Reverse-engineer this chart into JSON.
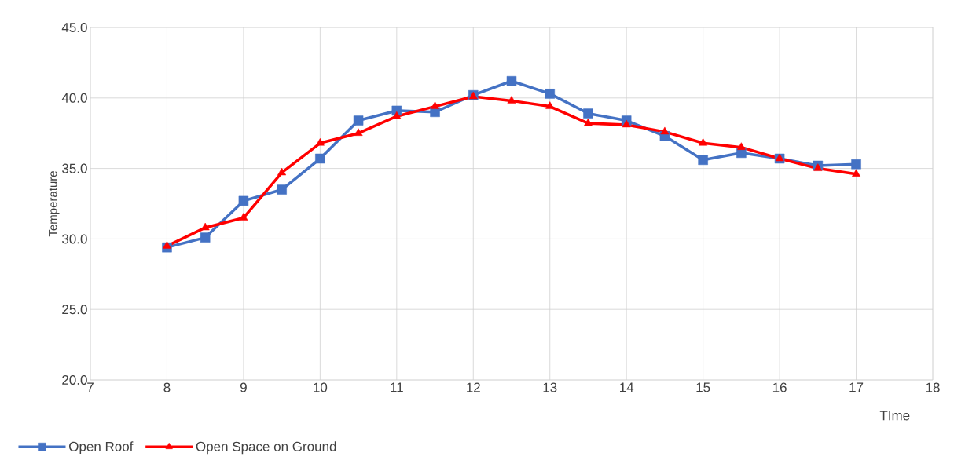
{
  "chart_data": {
    "type": "line",
    "xlabel": "TIme",
    "ylabel": "Temperature",
    "x": [
      8,
      8.5,
      9,
      9.5,
      10,
      10.5,
      11,
      11.5,
      12,
      12.5,
      13,
      13.5,
      14,
      14.5,
      15,
      15.5,
      16,
      16.5,
      17
    ],
    "series": [
      {
        "name": "Open Roof",
        "color": "#4472c4",
        "marker": "square",
        "values": [
          29.4,
          30.1,
          32.7,
          33.5,
          35.7,
          38.4,
          39.1,
          39.0,
          40.2,
          41.2,
          40.3,
          38.9,
          38.4,
          37.3,
          35.6,
          36.1,
          35.7,
          35.2,
          35.3
        ]
      },
      {
        "name": "Open Space on Ground",
        "color": "#ff0000",
        "marker": "triangle",
        "values": [
          29.5,
          30.8,
          31.5,
          34.7,
          36.8,
          37.5,
          38.7,
          39.4,
          40.1,
          39.8,
          39.4,
          38.2,
          38.1,
          37.6,
          36.8,
          36.5,
          35.7,
          35.0,
          34.6
        ]
      }
    ],
    "xlim": [
      7,
      18
    ],
    "xticks": [
      7,
      8,
      9,
      10,
      11,
      12,
      13,
      14,
      15,
      16,
      17,
      18
    ],
    "ylim": [
      20,
      45
    ],
    "yticks": [
      {
        "value": 20,
        "label": "20.0"
      },
      {
        "value": 25,
        "label": "25.0"
      },
      {
        "value": 30,
        "label": "30.0"
      },
      {
        "value": 35,
        "label": "35.0"
      },
      {
        "value": 40,
        "label": "40.0"
      },
      {
        "value": 45,
        "label": "45.0"
      }
    ],
    "grid": true,
    "legend": "bottom left",
    "line_style": "solid"
  }
}
